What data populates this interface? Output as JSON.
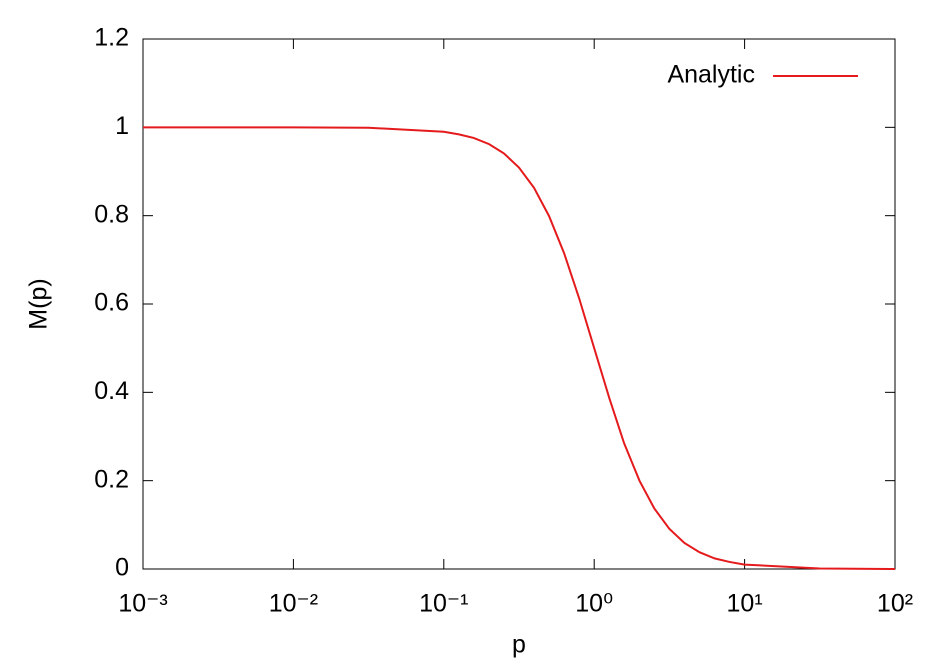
{
  "chart_data": {
    "type": "line",
    "x_label": "p",
    "y_label": "M(p)",
    "x": [
      0.001,
      0.00316,
      0.01,
      0.0316,
      0.1,
      0.126,
      0.158,
      0.2,
      0.251,
      0.316,
      0.398,
      0.501,
      0.631,
      0.794,
      1,
      1.26,
      1.58,
      2,
      2.51,
      3.16,
      3.98,
      5.01,
      6.31,
      7.94,
      10,
      31.6,
      100
    ],
    "series": [
      {
        "name": "Analytic",
        "color": "#e41a1c",
        "values": [
          1.0,
          1.0,
          1.0,
          0.999,
          0.99,
          0.984,
          0.976,
          0.962,
          0.941,
          0.909,
          0.863,
          0.799,
          0.715,
          0.613,
          0.5,
          0.387,
          0.285,
          0.2,
          0.137,
          0.091,
          0.059,
          0.038,
          0.024,
          0.016,
          0.01,
          0.001,
          0.0
        ]
      }
    ],
    "x_log": true,
    "xlim": [
      0.001,
      100
    ],
    "xticks": [
      {
        "value": 0.001,
        "label": "10⁻³"
      },
      {
        "value": 0.01,
        "label": "10⁻²"
      },
      {
        "value": 0.1,
        "label": "10⁻¹"
      },
      {
        "value": 1,
        "label": "10⁰"
      },
      {
        "value": 10,
        "label": "10¹"
      },
      {
        "value": 100,
        "label": "10²"
      }
    ],
    "ylim": [
      0,
      1.2
    ],
    "yticks": [
      0,
      0.2,
      0.4,
      0.6,
      0.8,
      1,
      1.2
    ],
    "legend": "top-right"
  }
}
